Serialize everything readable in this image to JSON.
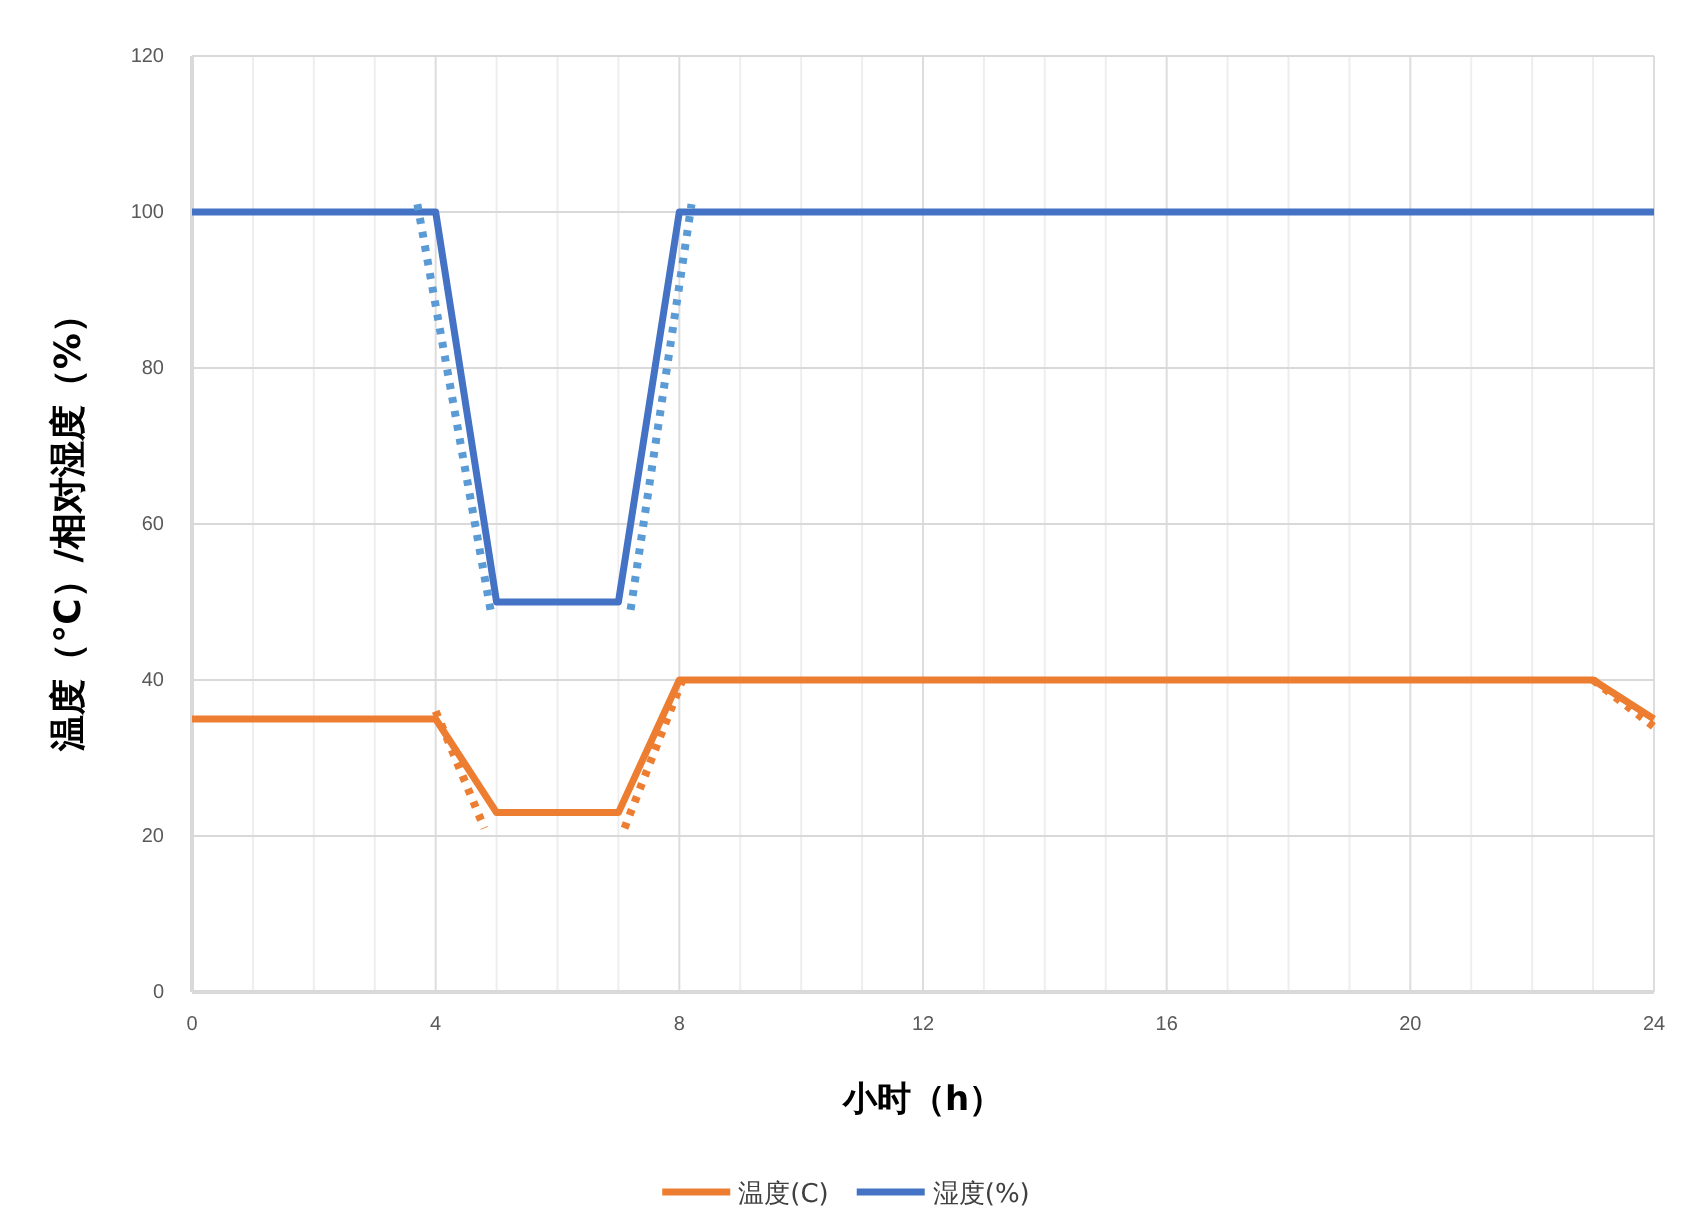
{
  "chart_data": {
    "type": "line",
    "xlabel": "小时（h）",
    "ylabel": "温度（°C）/相对湿度（%）",
    "xlim": [
      0,
      24
    ],
    "ylim": [
      0,
      120
    ],
    "xticks": [
      0,
      {
        "value": 1,
        "label": null
      },
      {
        "value": 2,
        "label": null
      },
      {
        "value": 3,
        "label": null
      },
      4,
      {
        "value": 5,
        "label": null
      },
      {
        "value": 6,
        "label": null
      },
      {
        "value": 7,
        "label": null
      },
      8,
      {
        "value": 9,
        "label": null
      },
      {
        "value": 10,
        "label": null
      },
      {
        "value": 11,
        "label": null
      },
      12,
      {
        "value": 13,
        "label": null
      },
      {
        "value": 14,
        "label": null
      },
      {
        "value": 15,
        "label": null
      },
      16,
      {
        "value": 17,
        "label": null
      },
      {
        "value": 18,
        "label": null
      },
      {
        "value": 19,
        "label": null
      },
      20,
      {
        "value": 21,
        "label": null
      },
      {
        "value": 22,
        "label": null
      },
      {
        "value": 23,
        "label": null
      },
      24
    ],
    "yticks": [
      0,
      20,
      40,
      60,
      80,
      100,
      120
    ],
    "grid": true,
    "legend": "bottom",
    "marker": "none",
    "series": [
      {
        "name": "温度(C)",
        "color": "#ed7d31",
        "x": [
          0,
          4,
          5,
          7,
          8,
          23,
          24
        ],
        "values": [
          35,
          35,
          23,
          23,
          40,
          40,
          35
        ],
        "line_style": "solid"
      },
      {
        "name": "湿度(%)",
        "color": "#4472c4",
        "x": [
          0,
          4,
          5,
          7,
          8,
          24
        ],
        "values": [
          100,
          100,
          50,
          50,
          100,
          100
        ],
        "line_style": "solid"
      },
      {
        "color": "#5b9bd5",
        "x": [
          3.7,
          4.9
        ],
        "values": [
          101,
          49
        ],
        "line_style": "dotted"
      },
      {
        "color": "#5b9bd5",
        "x": [
          7.2,
          8.2
        ],
        "values": [
          49,
          101
        ],
        "line_style": "dotted"
      },
      {
        "color": "#ed7d31",
        "x": [
          4,
          4.8
        ],
        "values": [
          36,
          21
        ],
        "line_style": "dotted"
      },
      {
        "color": "#ed7d31",
        "x": [
          7.1,
          8.1
        ],
        "values": [
          21,
          41
        ],
        "line_style": "dotted"
      },
      {
        "color": "#ed7d31",
        "x": [
          23,
          24
        ],
        "values": [
          40,
          34
        ],
        "line_style": "dotted"
      }
    ]
  }
}
